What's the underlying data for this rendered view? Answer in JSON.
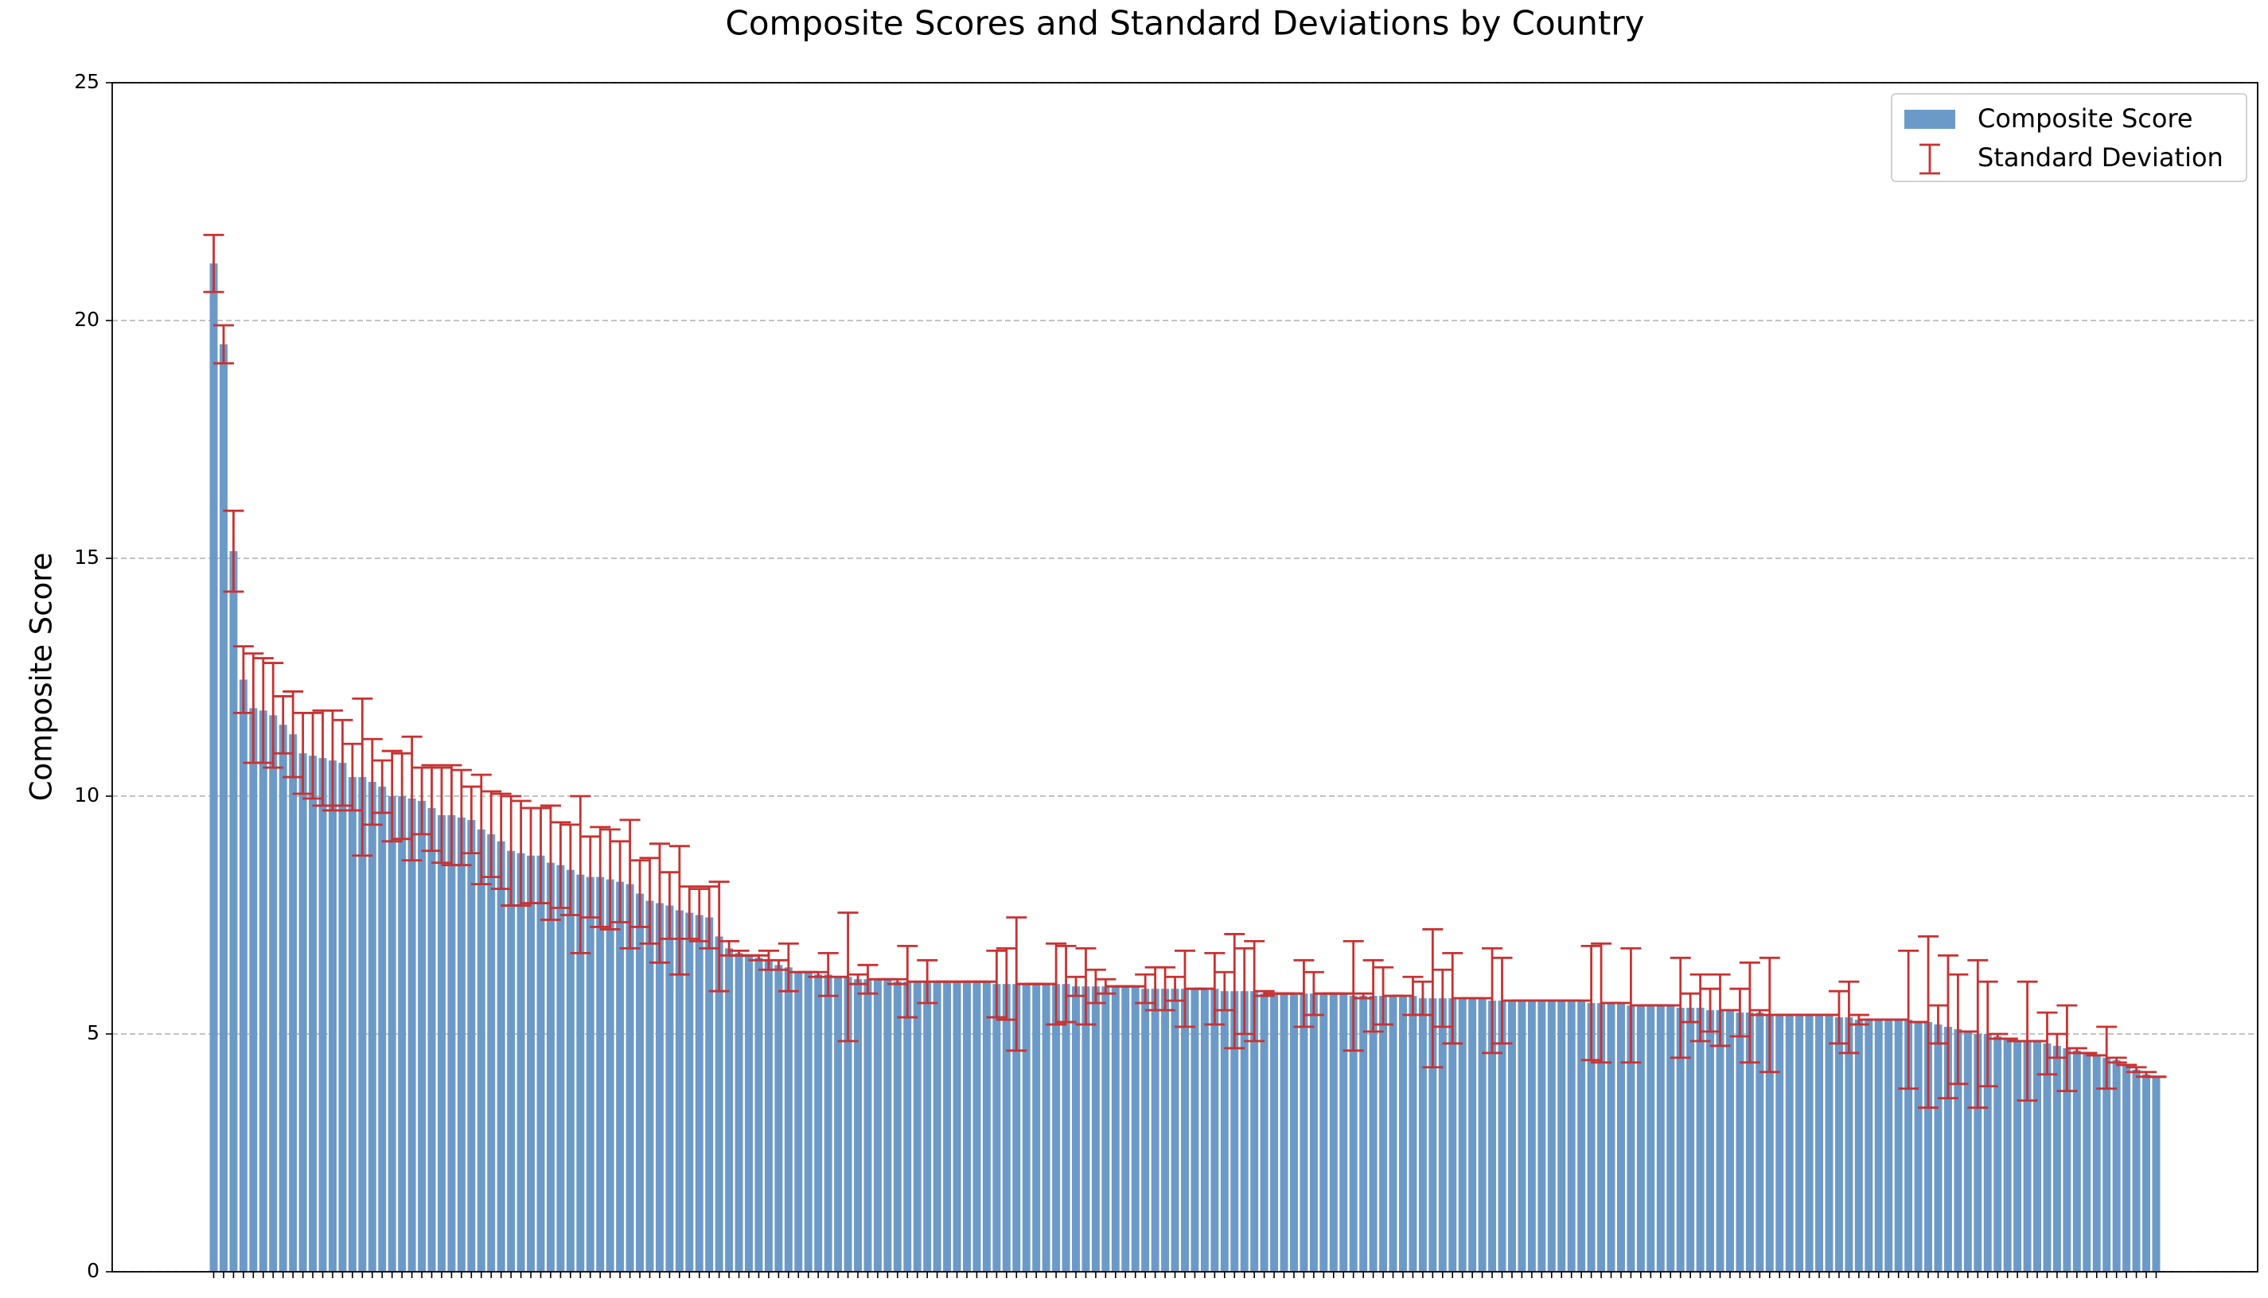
{
  "chart_data": {
    "type": "bar",
    "title": "Composite Scores and Standard Deviations by Country",
    "y_label": "Composite Score",
    "categories": [
      null,
      null,
      null,
      null,
      null,
      null,
      null,
      null,
      null,
      null,
      null,
      null,
      null,
      null,
      null,
      null,
      null,
      null,
      null,
      null,
      null,
      null,
      null,
      null,
      null,
      null,
      null,
      null,
      null,
      null,
      null,
      null,
      null,
      null,
      null,
      null,
      null,
      null,
      null,
      null,
      null,
      null,
      null,
      null,
      null,
      null,
      null,
      null,
      null,
      null,
      null,
      null,
      null,
      null,
      null,
      null,
      null,
      null,
      null,
      null,
      null,
      null,
      null,
      null,
      null,
      null,
      null,
      null,
      null,
      null,
      null,
      null,
      null,
      null,
      null,
      null,
      null,
      null,
      null,
      null,
      null,
      null,
      null,
      null,
      null,
      null,
      null,
      null,
      null,
      null,
      null,
      null,
      null,
      null,
      null,
      null,
      null,
      null,
      null,
      null,
      null,
      null,
      null,
      null,
      null,
      null,
      null,
      null,
      null,
      null,
      null,
      null,
      null,
      null,
      null,
      null,
      null,
      null,
      null,
      null,
      null,
      null,
      null,
      null,
      null,
      null,
      null,
      null,
      null,
      null,
      null,
      null,
      null,
      null,
      null,
      null,
      null,
      null,
      null,
      null,
      null,
      null,
      null,
      null,
      null,
      null,
      null,
      null,
      null,
      null,
      null,
      null,
      null,
      null,
      null,
      null,
      null,
      null,
      null,
      null,
      null,
      null,
      null,
      null,
      null,
      null,
      null,
      null,
      null,
      null,
      null,
      null,
      null,
      null,
      null,
      null,
      null,
      null,
      null,
      null,
      null,
      null,
      null,
      null,
      null,
      null,
      null,
      null,
      null,
      null,
      null,
      null,
      null,
      null,
      null,
      null,
      null
    ],
    "series": [
      {
        "name": "Composite Score",
        "color": "#6c9ac8",
        "error_name": "Standard Deviation",
        "error_color": "#c83232",
        "values": [
          21.2,
          19.5,
          15.15,
          12.45,
          11.85,
          11.8,
          11.7,
          11.5,
          11.3,
          10.9,
          10.85,
          10.8,
          10.75,
          10.7,
          10.4,
          10.4,
          10.3,
          10.2,
          10.0,
          10.0,
          9.95,
          9.9,
          9.75,
          9.6,
          9.6,
          9.55,
          9.5,
          9.3,
          9.2,
          9.05,
          8.85,
          8.8,
          8.75,
          8.75,
          8.6,
          8.55,
          8.45,
          8.35,
          8.3,
          8.3,
          8.25,
          8.2,
          8.15,
          7.95,
          7.8,
          7.75,
          7.7,
          7.6,
          7.55,
          7.5,
          7.45,
          7.05,
          6.8,
          6.7,
          6.65,
          6.6,
          6.55,
          6.45,
          6.4,
          6.3,
          6.3,
          6.25,
          6.25,
          6.2,
          6.2,
          6.15,
          6.15,
          6.15,
          6.15,
          6.1,
          6.1,
          6.1,
          6.1,
          6.1,
          6.1,
          6.1,
          6.1,
          6.1,
          6.1,
          6.05,
          6.05,
          6.05,
          6.05,
          6.05,
          6.05,
          6.05,
          6.05,
          6.0,
          6.0,
          6.0,
          6.0,
          6.0,
          6.0,
          6.0,
          5.95,
          5.95,
          5.95,
          5.95,
          5.95,
          5.95,
          5.95,
          5.95,
          5.9,
          5.9,
          5.9,
          5.9,
          5.85,
          5.85,
          5.85,
          5.85,
          5.85,
          5.85,
          5.85,
          5.85,
          5.85,
          5.8,
          5.8,
          5.8,
          5.8,
          5.8,
          5.8,
          5.8,
          5.75,
          5.75,
          5.75,
          5.75,
          5.75,
          5.75,
          5.75,
          5.7,
          5.7,
          5.7,
          5.7,
          5.7,
          5.7,
          5.7,
          5.7,
          5.7,
          5.7,
          5.65,
          5.65,
          5.65,
          5.65,
          5.6,
          5.6,
          5.6,
          5.6,
          5.6,
          5.55,
          5.55,
          5.55,
          5.5,
          5.5,
          5.5,
          5.45,
          5.45,
          5.45,
          5.4,
          5.4,
          5.4,
          5.4,
          5.4,
          5.4,
          5.4,
          5.35,
          5.35,
          5.3,
          5.3,
          5.3,
          5.3,
          5.3,
          5.3,
          5.25,
          5.25,
          5.2,
          5.15,
          5.1,
          5.05,
          5.0,
          5.0,
          4.95,
          4.9,
          4.85,
          4.85,
          4.85,
          4.8,
          4.75,
          4.7,
          4.65,
          4.6,
          4.55,
          4.5,
          4.45,
          4.35,
          4.25,
          4.15,
          4.1
        ],
        "errors": [
          0.6,
          0.4,
          0.85,
          0.7,
          1.15,
          1.1,
          1.1,
          0.6,
          0.9,
          0.85,
          0.9,
          1.0,
          1.05,
          0.9,
          0.7,
          1.65,
          0.9,
          0.55,
          0.95,
          0.9,
          1.3,
          0.7,
          0.9,
          1.0,
          1.05,
          1.0,
          0.7,
          1.15,
          0.9,
          1.0,
          1.15,
          1.1,
          1.0,
          1.0,
          1.2,
          0.9,
          0.95,
          1.65,
          0.85,
          1.05,
          1.05,
          0.85,
          1.35,
          0.7,
          0.9,
          1.25,
          0.7,
          1.35,
          0.55,
          0.55,
          0.65,
          1.15,
          0.15,
          0.05,
          0,
          0.05,
          0.2,
          0.1,
          0.5,
          0,
          0,
          0.05,
          0.45,
          0,
          1.35,
          0.1,
          0.3,
          0,
          0,
          0.05,
          0.75,
          0,
          0.45,
          0,
          0,
          0,
          0,
          0,
          0,
          0.7,
          0.75,
          1.4,
          0,
          0,
          0,
          0.85,
          0.8,
          0.2,
          0.8,
          0.35,
          0.15,
          0,
          0,
          0,
          0.3,
          0.45,
          0.45,
          0.25,
          0.8,
          0,
          0,
          0.75,
          0.4,
          1.2,
          0.9,
          1.05,
          0.05,
          0,
          0,
          0,
          0.7,
          0.45,
          0,
          0,
          0,
          1.15,
          0.05,
          0.75,
          0.6,
          0,
          0,
          0.4,
          0.35,
          1.45,
          0.6,
          0.95,
          0,
          0,
          0,
          1.1,
          0.9,
          0,
          0,
          0,
          0,
          0,
          0,
          0,
          0,
          1.2,
          1.25,
          0,
          0,
          1.2,
          0,
          0,
          0,
          0,
          1.05,
          0.3,
          0.7,
          0.45,
          0.75,
          0,
          0.5,
          1.05,
          0.05,
          1.2,
          0,
          0,
          0,
          0,
          0,
          0,
          0.55,
          0.75,
          0.1,
          0,
          0,
          0,
          0,
          1.45,
          0,
          1.8,
          0.4,
          1.5,
          1.15,
          0,
          1.55,
          1.1,
          0.05,
          0,
          0,
          1.25,
          0,
          0.65,
          0.25,
          0.9,
          0.05,
          0,
          0,
          0.65,
          0.05,
          0,
          0.05,
          0.05,
          0
        ]
      }
    ],
    "ylim": [
      0,
      25
    ],
    "yticks": [
      0,
      5,
      10,
      15,
      20,
      25
    ],
    "grid": true,
    "legend": "upper right"
  }
}
